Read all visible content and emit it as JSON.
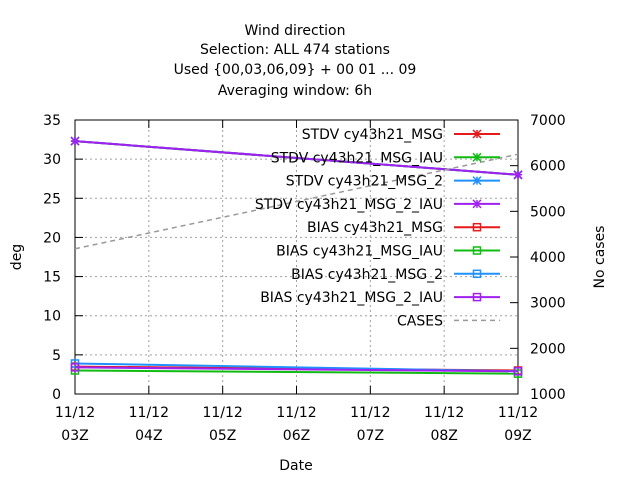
{
  "chart_data": {
    "type": "line",
    "title_lines": [
      "Wind direction",
      "Selection: ALL    474 stations",
      "Used {00,03,06,09} + 00 01 ... 09",
      "Averaging window:  6h"
    ],
    "xlabel": "Date",
    "ylabel": "deg",
    "y2label": "No cases",
    "x_ticks": [
      {
        "date": "11/12",
        "hour": "03Z"
      },
      {
        "date": "11/12",
        "hour": "04Z"
      },
      {
        "date": "11/12",
        "hour": "05Z"
      },
      {
        "date": "11/12",
        "hour": "06Z"
      },
      {
        "date": "11/12",
        "hour": "07Z"
      },
      {
        "date": "11/12",
        "hour": "08Z"
      },
      {
        "date": "11/12",
        "hour": "09Z"
      }
    ],
    "ylim": [
      0,
      35
    ],
    "y_ticks": [
      0,
      5,
      10,
      15,
      20,
      25,
      30,
      35
    ],
    "y2lim": [
      1000,
      7000
    ],
    "y2_ticks": [
      1000,
      2000,
      3000,
      4000,
      5000,
      6000,
      7000
    ],
    "grid": true,
    "legend_position": "top-right",
    "x": [
      "03Z",
      "09Z"
    ],
    "series": [
      {
        "name": "STDV cy43h21_MSG",
        "color": "#e41a1c",
        "marker": "x",
        "values": [
          32.3,
          28.0
        ]
      },
      {
        "name": "STDV cy43h21_MSG_IAU",
        "color": "#11bb11",
        "marker": "x",
        "values": [
          32.3,
          28.0
        ]
      },
      {
        "name": "STDV cy43h21_MSG_2",
        "color": "#1e90ff",
        "marker": "x",
        "values": [
          32.3,
          28.0
        ]
      },
      {
        "name": "STDV cy43h21_MSG_2_IAU",
        "color": "#a020f0",
        "marker": "x",
        "values": [
          32.3,
          28.0
        ]
      },
      {
        "name": "BIAS cy43h21_MSG",
        "color": "#e41a1c",
        "marker": "square",
        "values": [
          3.5,
          3.0
        ]
      },
      {
        "name": "BIAS cy43h21_MSG_IAU",
        "color": "#11bb11",
        "marker": "square",
        "values": [
          3.0,
          2.6
        ]
      },
      {
        "name": "BIAS cy43h21_MSG_2",
        "color": "#1e90ff",
        "marker": "square",
        "values": [
          3.9,
          2.9
        ]
      },
      {
        "name": "BIAS cy43h21_MSG_2_IAU",
        "color": "#a020f0",
        "marker": "square",
        "values": [
          3.4,
          2.9
        ]
      },
      {
        "name": "CASES",
        "color": "#999999",
        "marker": "none",
        "dashed": true,
        "axis": "y2",
        "values": [
          4180,
          6250
        ]
      }
    ]
  }
}
